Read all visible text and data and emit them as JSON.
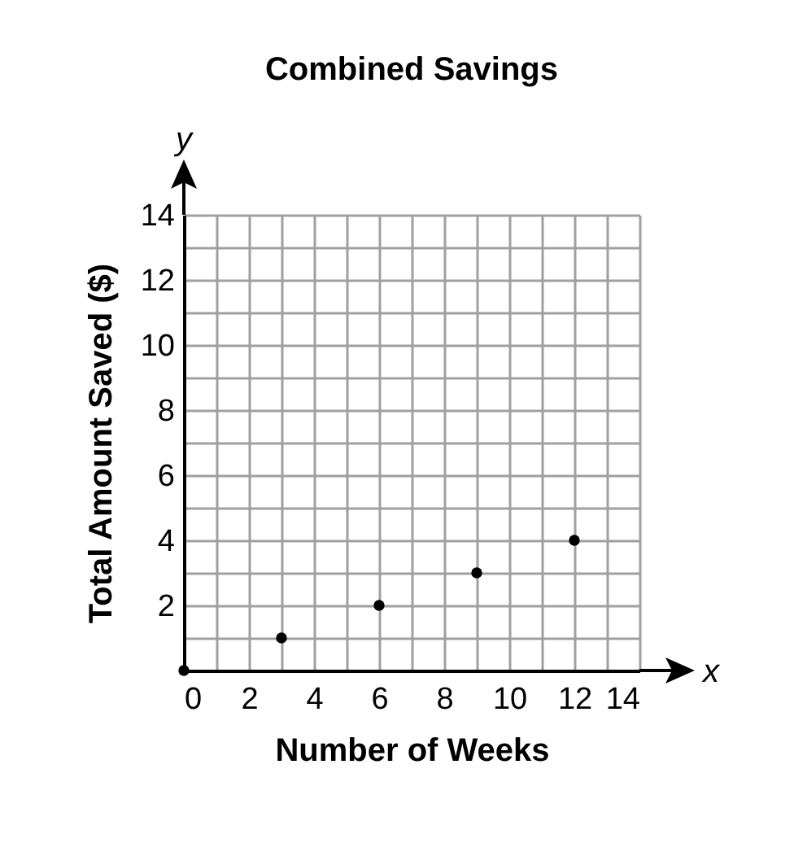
{
  "chart_data": {
    "type": "scatter",
    "title": "Combined Savings",
    "xlabel": "Number of Weeks",
    "ylabel": "Total Amount Saved ($)",
    "annotations": [
      "x",
      "y"
    ],
    "x": [
      0,
      3,
      6,
      9,
      12
    ],
    "series": [
      {
        "color": "#000000",
        "values": [
          0,
          1,
          2,
          3,
          4
        ]
      }
    ],
    "xlim": [
      0,
      14
    ],
    "ylim": [
      0,
      14
    ],
    "xticks": [
      0,
      {
        "value": 1,
        "label": null
      },
      2,
      {
        "value": 3,
        "label": null
      },
      4,
      {
        "value": 5,
        "label": null
      },
      6,
      {
        "value": 7,
        "label": null
      },
      8,
      {
        "value": 9,
        "label": null
      },
      10,
      {
        "value": 11,
        "label": null
      },
      12,
      {
        "value": 13,
        "label": null
      },
      14
    ],
    "yticks": [
      {
        "value": 0,
        "label": null
      },
      {
        "value": 1,
        "label": null
      },
      2,
      {
        "value": 3,
        "label": null
      },
      4,
      {
        "value": 5,
        "label": null
      },
      6,
      {
        "value": 7,
        "label": null
      },
      8,
      {
        "value": 9,
        "label": null
      },
      10,
      {
        "value": 11,
        "label": null
      },
      12,
      {
        "value": 13,
        "label": null
      },
      14
    ],
    "grid": true,
    "marker": "circle"
  }
}
